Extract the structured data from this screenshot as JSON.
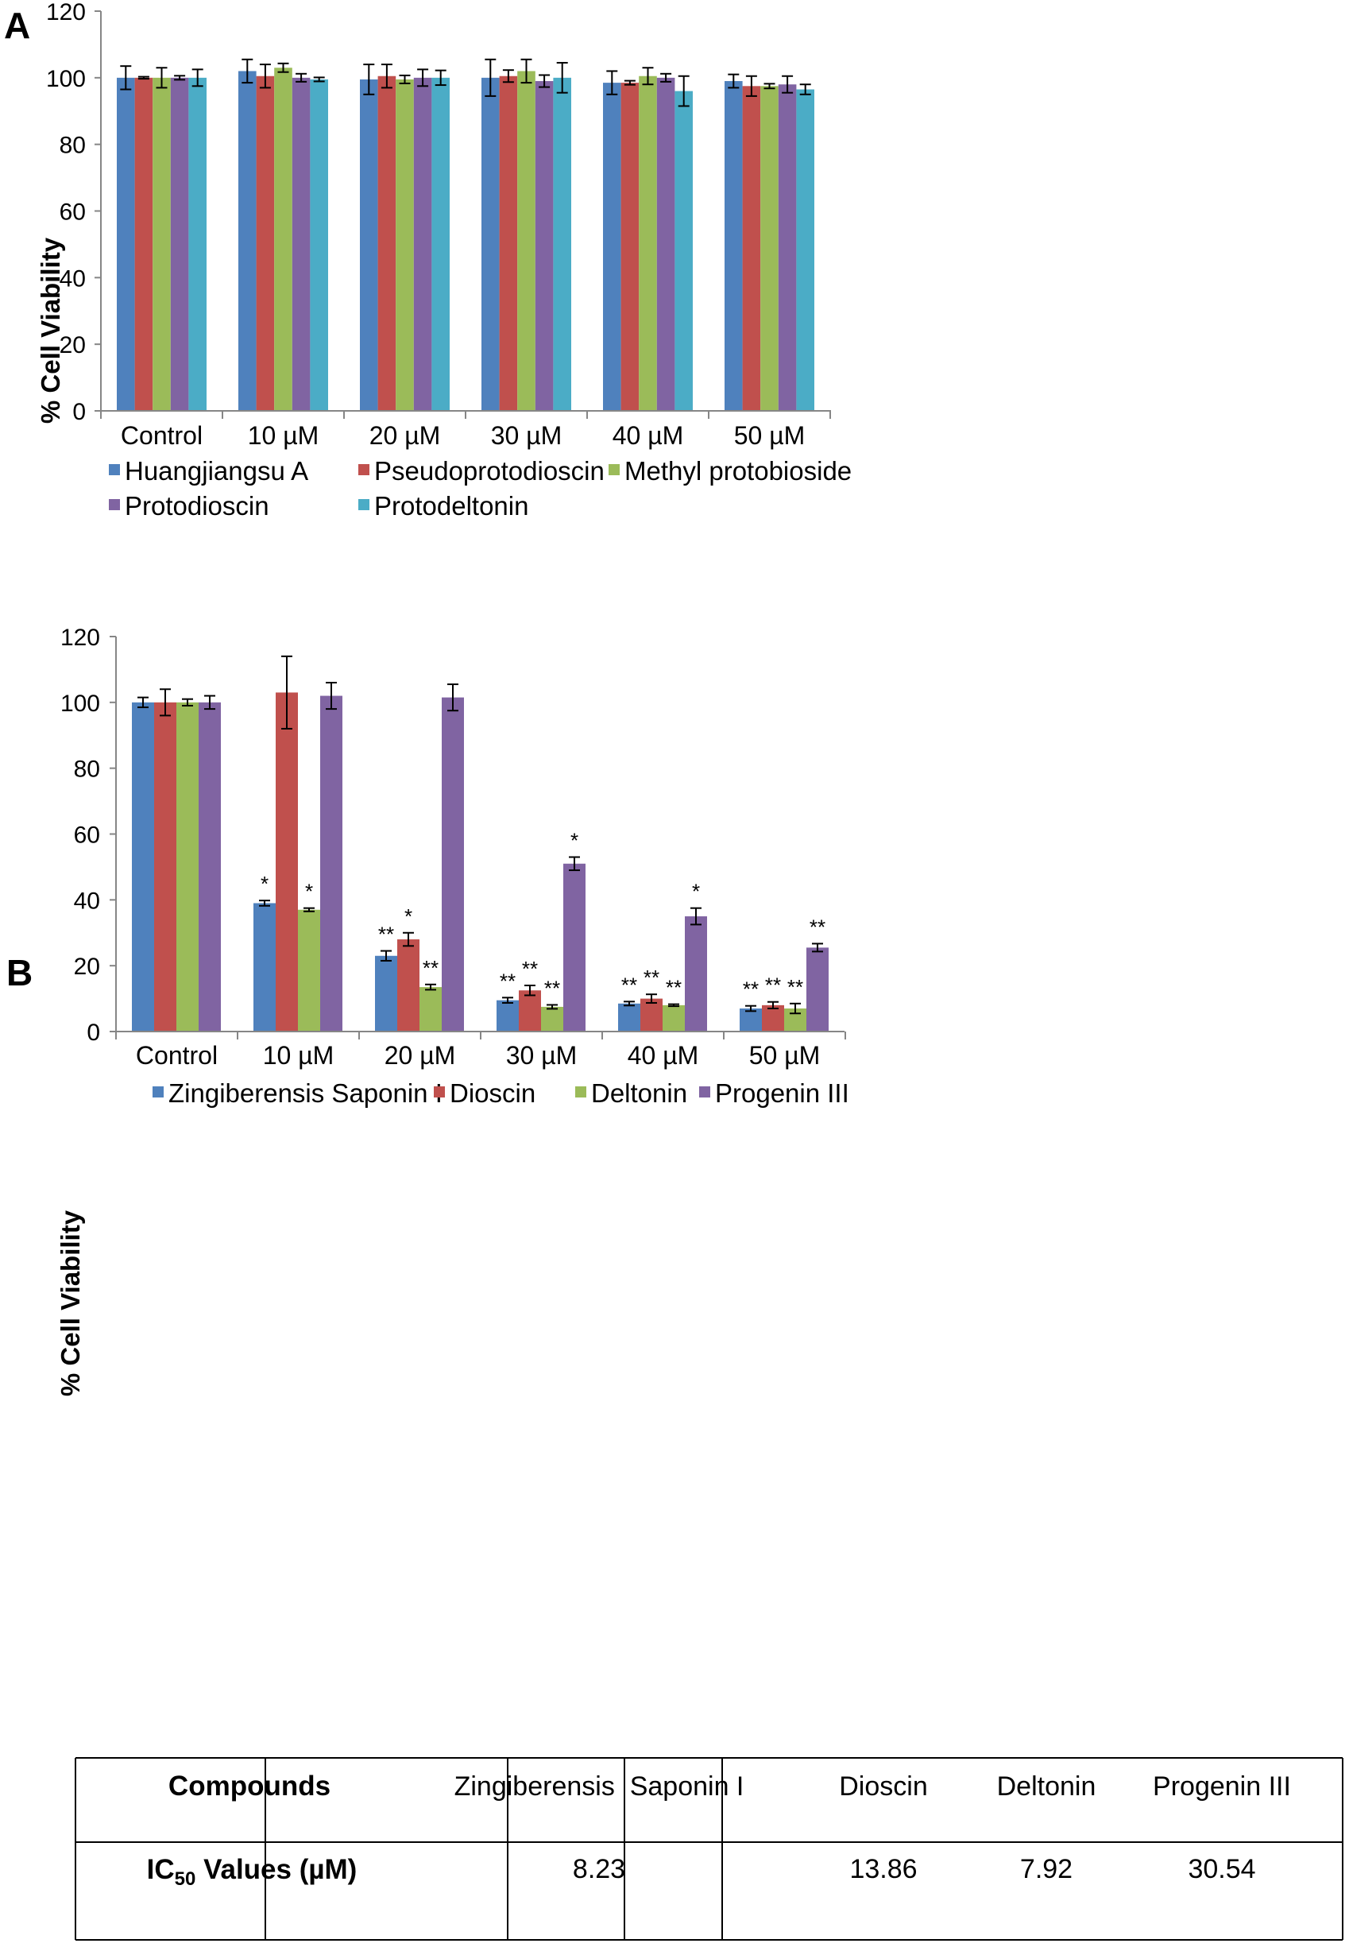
{
  "colors": {
    "blue": "#4f81bd",
    "red": "#c0504d",
    "green": "#9bbb59",
    "purple": "#8064a2",
    "cyan": "#4bacc6",
    "axis": "#868686",
    "text": "#000000"
  },
  "chart_data": [
    {
      "panel_label": "A",
      "type": "bar",
      "title": "",
      "xlabel": "",
      "ylabel": "% Cell Viability",
      "ylim": [
        0,
        120
      ],
      "yticks": [
        "0",
        "20",
        "40",
        "60",
        "80",
        "100",
        "120"
      ],
      "categories": [
        "Control",
        "10 µM",
        "20 µM",
        "30 µM",
        "40 µM",
        "50 µM"
      ],
      "legend_position": "bottom",
      "series": [
        {
          "name": "Huangjiangsu A",
          "color": "#4f81bd",
          "values": [
            100,
            102,
            99.5,
            100,
            98.5,
            99
          ],
          "errors": [
            3.5,
            3.5,
            4.5,
            5.5,
            3.5,
            2
          ]
        },
        {
          "name": "Pseudoprotodioscin",
          "color": "#c0504d",
          "values": [
            100,
            100.5,
            100.5,
            100.5,
            98.5,
            97.5
          ],
          "errors": [
            0.3,
            3.5,
            3.5,
            1.8,
            0.6,
            3
          ]
        },
        {
          "name": "Methyl protobioside",
          "color": "#9bbb59",
          "values": [
            100,
            103,
            99.5,
            102,
            100.5,
            97.5
          ],
          "errors": [
            3,
            1.3,
            1.2,
            3.5,
            2.5,
            0.7
          ]
        },
        {
          "name": "Protodioscin",
          "color": "#8064a2",
          "values": [
            100,
            100,
            100,
            99,
            100,
            98
          ],
          "errors": [
            0.6,
            1.2,
            2.5,
            1.8,
            1.2,
            2.5
          ]
        },
        {
          "name": "Protodeltonin",
          "color": "#4bacc6",
          "values": [
            100,
            99.5,
            100,
            100,
            96,
            96.5
          ],
          "errors": [
            2.5,
            0.6,
            2.2,
            4.5,
            4.5,
            1.5
          ]
        }
      ]
    },
    {
      "panel_label": "B",
      "type": "bar",
      "title": "",
      "xlabel": "",
      "ylabel": "% Cell Viability",
      "ylim": [
        0,
        120
      ],
      "yticks": [
        "0",
        "20",
        "40",
        "60",
        "80",
        "100",
        "120"
      ],
      "categories": [
        "Control",
        "10 µM",
        "20 µM",
        "30 µM",
        "40 µM",
        "50 µM"
      ],
      "legend_position": "bottom",
      "series": [
        {
          "name": "Zingiberensis Saponin I",
          "color": "#4f81bd",
          "values": [
            100,
            39,
            23,
            9.5,
            8.5,
            7
          ],
          "errors": [
            1.5,
            0.8,
            1.5,
            0.8,
            0.6,
            0.8
          ],
          "annotations": [
            "",
            "*",
            "**",
            "**",
            "**",
            "**"
          ]
        },
        {
          "name": "Dioscin",
          "color": "#c0504d",
          "values": [
            100,
            103,
            28,
            12.5,
            10,
            8
          ],
          "errors": [
            4,
            11,
            2,
            1.5,
            1.3,
            1
          ],
          "annotations": [
            "",
            "",
            "*",
            "**",
            "**",
            "**"
          ]
        },
        {
          "name": "Deltonin",
          "color": "#9bbb59",
          "values": [
            100,
            37,
            13.5,
            7.5,
            8,
            7
          ],
          "errors": [
            1,
            0.5,
            0.8,
            0.6,
            0.3,
            1.5
          ],
          "annotations": [
            "",
            "*",
            "**",
            "**",
            "**",
            "**"
          ]
        },
        {
          "name": "Progenin III",
          "color": "#8064a2",
          "values": [
            100,
            102,
            101.5,
            51,
            35,
            25.5
          ],
          "errors": [
            2,
            4,
            4,
            2,
            2.5,
            1.2
          ],
          "annotations": [
            "",
            "",
            "",
            "*",
            "*",
            "**"
          ]
        }
      ]
    }
  ],
  "ic50_table": {
    "header_label": "Compounds",
    "row_label_main": "IC",
    "row_label_sub": "50",
    "row_label_tail": " Values (µM)",
    "compounds": [
      "Zingiberensis  Saponin I",
      "Dioscin",
      "Deltonin",
      "Progenin III"
    ],
    "values": [
      "8.23",
      "13.86",
      "7.92",
      "30.54"
    ]
  }
}
